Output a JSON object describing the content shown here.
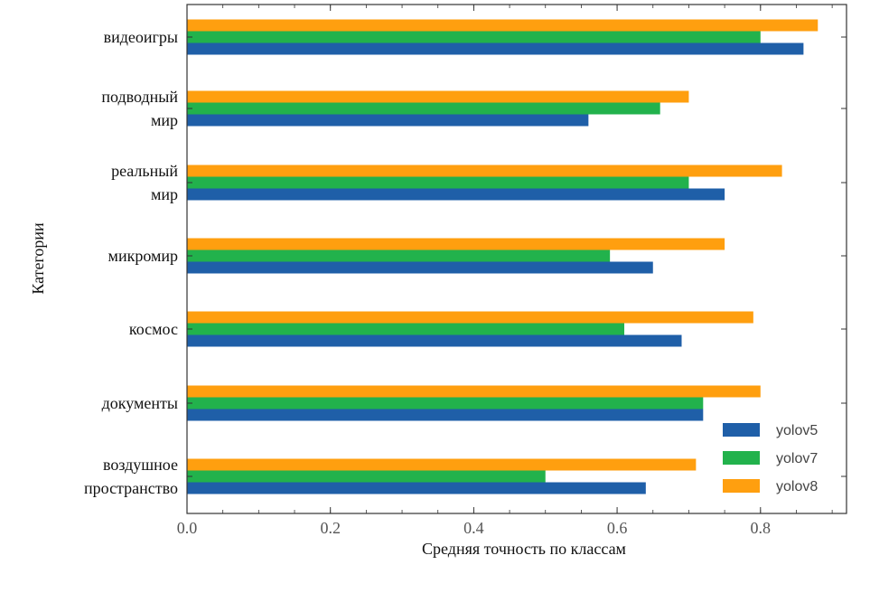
{
  "chart_data": {
    "type": "bar",
    "orientation": "horizontal",
    "categories": [
      [
        "видеоигры"
      ],
      [
        "подводный",
        "мир"
      ],
      [
        "реальный",
        "мир"
      ],
      [
        "микромир"
      ],
      [
        "космос"
      ],
      [
        "документы"
      ],
      [
        "воздушное",
        "пространство"
      ]
    ],
    "series": [
      {
        "name": "yolov5",
        "color": "#1f5fa8",
        "values": [
          0.86,
          0.56,
          0.75,
          0.65,
          0.69,
          0.72,
          0.64
        ]
      },
      {
        "name": "yolov7",
        "color": "#22b24c",
        "values": [
          0.8,
          0.66,
          0.7,
          0.59,
          0.61,
          0.72,
          0.5
        ]
      },
      {
        "name": "yolov8",
        "color": "#ff9f0f",
        "values": [
          0.88,
          0.7,
          0.83,
          0.75,
          0.79,
          0.8,
          0.71
        ]
      }
    ],
    "xlabel": "Средняя точность по классам",
    "ylabel": "Категории",
    "xlim": [
      0,
      0.92
    ],
    "xticks": [
      0.0,
      0.2,
      0.4,
      0.6,
      0.8
    ],
    "xtick_labels": [
      "0.0",
      "0.2",
      "0.4",
      "0.6",
      "0.8"
    ],
    "grid": false,
    "legend_position": "bottom-right"
  }
}
